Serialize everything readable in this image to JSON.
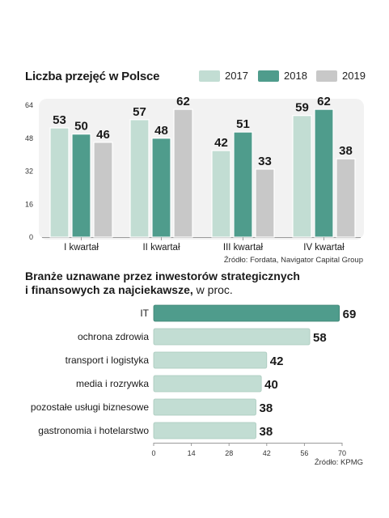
{
  "colors": {
    "2017": "#c2ddd3",
    "2018": "#4f9c8c",
    "2019": "#c8c8c8",
    "panel": "#f2f2f2",
    "hbar": "#c2ddd3",
    "hbar_top": "#4f9c8c"
  },
  "chart1": {
    "title": "Liczba przejęć w Polsce",
    "source": "Źródło: Fordata, Navigator Capital Group"
  },
  "chart2": {
    "title_line1": "Branże uznawane przez inwestorów strategicznych",
    "title_line2": "i finansowych za najciekawsze,",
    "title_suffix": " w proc.",
    "source": "Źródło: KPMG"
  },
  "chart_data": [
    {
      "type": "bar",
      "title": "Liczba przejęć w Polsce",
      "categories": [
        "I kwartał",
        "II kwartał",
        "III kwartał",
        "IV kwartał"
      ],
      "series": [
        {
          "name": "2017",
          "values": [
            53,
            57,
            42,
            59
          ]
        },
        {
          "name": "2018",
          "values": [
            50,
            48,
            51,
            62
          ]
        },
        {
          "name": "2019",
          "values": [
            46,
            62,
            33,
            38
          ]
        }
      ],
      "ylim": [
        0,
        64
      ],
      "yticks": [
        0,
        16,
        32,
        48,
        64
      ],
      "legend": "top-right",
      "grid": false
    },
    {
      "type": "bar",
      "orientation": "horizontal",
      "title": "Branże uznawane przez inwestorów strategicznych i finansowych za najciekawsze, w proc.",
      "categories": [
        "IT",
        "ochrona zdrowia",
        "transport i logistyka",
        "media i rozrywka",
        "pozostałe usługi biznesowe",
        "gastronomia i hotelarstwo"
      ],
      "values": [
        69,
        58,
        42,
        40,
        38,
        38
      ],
      "xlim": [
        0,
        70
      ],
      "xticks": [
        0,
        14,
        28,
        42,
        56,
        70
      ],
      "grid": false
    }
  ]
}
